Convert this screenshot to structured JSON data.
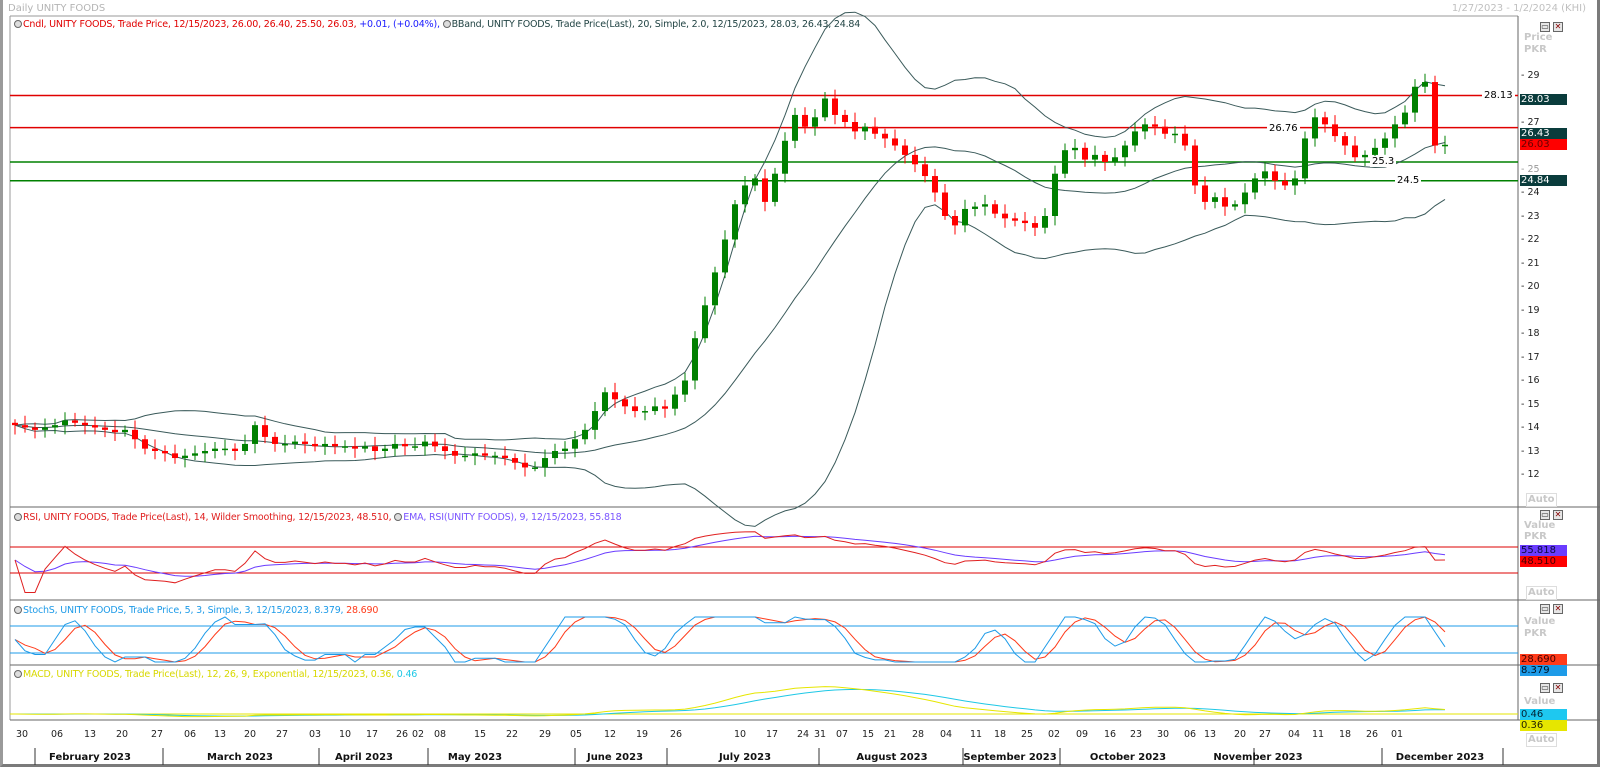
{
  "header": {
    "title": "Daily UNITY FOODS",
    "date_range": "1/27/2023 - 1/2/2024 (KHI)"
  },
  "price_panel": {
    "legend_cndl": "Cndl, UNITY FOODS, Trade Price,  12/15/2023, 26.00, 26.40, 25.50, 26.03,",
    "legend_change": " +0.01, (+0.04%),",
    "legend_bband": "BBand, UNITY FOODS, Trade Price(Last),  20, Simple, 2.0,  12/15/2023, 28.03, 26.43, 24.84",
    "axis_title": "Price",
    "axis_unit": "PKR",
    "axis_ticks": [
      "29",
      "27",
      "25",
      "24",
      "23",
      "22",
      "21",
      "20",
      "19",
      "18",
      "17",
      "16",
      "15",
      "14",
      "13",
      "12"
    ],
    "auto_label": "Auto",
    "tags": {
      "bb_upper": "28.03",
      "bb_mid": "26.43",
      "last": "26.03",
      "bb_lower": "24.84"
    },
    "hlines": [
      {
        "value": 28.13,
        "label": "28.13",
        "color": "#e00000"
      },
      {
        "value": 26.76,
        "label": "26.76",
        "color": "#e00000"
      },
      {
        "value": 25.3,
        "label": "25.3",
        "color": "#008000"
      },
      {
        "value": 24.5,
        "label": "24.5",
        "color": "#008000"
      }
    ]
  },
  "rsi_panel": {
    "legend_rsi": "RSI, UNITY FOODS, Trade Price(Last),  14, Wilder Smoothing,  12/15/2023, 48.510,",
    "legend_ema": "EMA, RSI(UNITY FOODS),  9,  12/15/2023, 55.818",
    "axis_title": "Value",
    "axis_unit": "PKR",
    "auto_label": "Auto",
    "tags": {
      "ema": "55.818",
      "rsi": "48.510"
    }
  },
  "stoch_panel": {
    "legend": "StochS, UNITY FOODS, Trade Price,  5, 3, Simple, 3,  12/15/2023, 8.379,",
    "legend_d": " 28.690",
    "axis_title": "Value",
    "axis_unit": "PKR",
    "tags": {
      "d": "28.690",
      "k": "8.379"
    }
  },
  "macd_panel": {
    "legend": "MACD, UNITY FOODS, Trade Price(Last),  12, 26, 9, Exponential,  12/15/2023, 0.36,",
    "legend_signal": " 0.46",
    "axis_title": "Value",
    "auto_label": "Auto",
    "tags": {
      "signal": "0.46",
      "macd": "0.36"
    }
  },
  "colors": {
    "up": "#008000",
    "down": "#ff0000",
    "bband": "#3a5a5a",
    "rsi": "#e02020",
    "ema": "#6a3cff",
    "stoch_k": "#1e9be8",
    "stoch_d": "#ff3b1a",
    "macd": "#e6e600",
    "macd_signal": "#1ec8e6",
    "tag_teal": "#0a3c3c"
  },
  "chart_data": {
    "type": "candlestick",
    "title": "Daily UNITY FOODS",
    "ylabel": "Price PKR",
    "ylim": [
      11.5,
      30.5
    ],
    "x_range": [
      "1/27/2023",
      "1/2/2024"
    ],
    "last_bar": {
      "date": "12/15/2023",
      "open": 26.0,
      "high": 26.4,
      "low": 25.5,
      "close": 26.03
    },
    "closes": [
      14.1,
      14.0,
      13.9,
      14.0,
      14.1,
      14.3,
      14.2,
      14.1,
      14.0,
      13.9,
      13.8,
      13.9,
      13.5,
      13.1,
      13.0,
      12.9,
      12.7,
      12.8,
      12.9,
      13.0,
      13.1,
      13.1,
      13.0,
      13.3,
      14.1,
      13.6,
      13.3,
      13.3,
      13.4,
      13.3,
      13.2,
      13.3,
      13.2,
      13.2,
      13.1,
      13.2,
      13.0,
      13.1,
      13.3,
      13.2,
      13.2,
      13.4,
      13.2,
      13.0,
      12.8,
      12.8,
      12.9,
      12.8,
      12.8,
      12.7,
      12.5,
      12.3,
      12.3,
      12.7,
      13.0,
      13.1,
      13.5,
      13.9,
      14.7,
      15.5,
      15.2,
      14.9,
      14.7,
      14.7,
      14.9,
      14.8,
      15.4,
      16.0,
      17.8,
      19.2,
      20.6,
      22.0,
      23.5,
      24.3,
      24.6,
      23.6,
      24.8,
      26.2,
      27.3,
      26.8,
      27.2,
      28.0,
      27.3,
      27.0,
      26.6,
      26.8,
      26.5,
      26.3,
      26.0,
      25.6,
      25.2,
      24.7,
      24.0,
      23.0,
      22.6,
      23.3,
      23.4,
      23.5,
      23.1,
      22.9,
      22.8,
      22.7,
      22.5,
      23.0,
      24.8,
      25.8,
      25.9,
      25.4,
      25.6,
      25.3,
      25.5,
      26.0,
      26.6,
      26.9,
      26.8,
      26.5,
      26.5,
      26.0,
      24.3,
      23.6,
      23.8,
      23.4,
      23.5,
      24.0,
      24.6,
      24.9,
      24.5,
      24.3,
      24.6,
      26.3,
      27.2,
      26.9,
      26.4,
      26.0,
      25.5,
      25.6,
      25.9,
      26.3,
      26.9,
      27.4,
      28.5,
      28.7,
      26.0,
      26.03
    ],
    "indicators": {
      "bband": {
        "period": 20,
        "stddev": 2.0,
        "upper": 28.03,
        "middle": 26.43,
        "lower": 24.84
      },
      "rsi": {
        "period": 14,
        "value": 48.51,
        "ema_period": 9,
        "ema_value": 55.818,
        "levels": [
          70,
          30
        ]
      },
      "stoch": {
        "k": 8.379,
        "d": 28.69,
        "levels": [
          80,
          20
        ]
      },
      "macd": {
        "fast": 12,
        "slow": 26,
        "signal": 9,
        "macd": 0.36,
        "signal_value": 0.46
      }
    },
    "x_tick_labels": [
      "30",
      "06",
      "13",
      "20",
      "27",
      "06",
      "13",
      "20",
      "27",
      "03",
      "10",
      "17",
      "26",
      "02",
      "08",
      "15",
      "22",
      "29",
      "05",
      "12",
      "19",
      "26",
      "10",
      "17",
      "24",
      "31",
      "07",
      "15",
      "21",
      "28",
      "04",
      "11",
      "18",
      "25",
      "02",
      "09",
      "16",
      "23",
      "30",
      "06",
      "13",
      "20",
      "27",
      "04",
      "11",
      "18",
      "26",
      "01"
    ],
    "month_labels": [
      "February 2023",
      "March 2023",
      "April 2023",
      "May 2023",
      "June 2023",
      "July 2023",
      "August 2023",
      "September 2023",
      "October 2023",
      "November 2023",
      "December 2023"
    ]
  }
}
